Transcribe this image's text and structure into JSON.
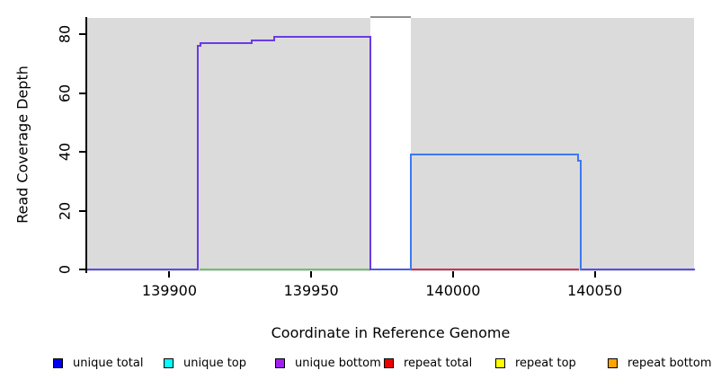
{
  "chart_data": {
    "type": "line",
    "step": true,
    "title": "",
    "xlabel": "Coordinate in Reference Genome",
    "ylabel": "Read Coverage Depth",
    "xlim": [
      139871,
      140085
    ],
    "ylim": [
      0,
      85.5
    ],
    "x_ticks": [
      139900,
      139950,
      140000,
      140050
    ],
    "y_ticks": [
      0,
      20,
      40,
      60,
      80
    ],
    "grid": false,
    "plot_background_color": "#DBDBDB",
    "background_regions": [
      {
        "name": "covered-region-left",
        "from": 139871,
        "to": 139971,
        "color": "#DBDBDB"
      },
      {
        "name": "covered-region-right",
        "from": 139985,
        "to": 140085,
        "color": "#DBDBDB"
      }
    ],
    "uncovered_gap": {
      "from": 139971,
      "to": 139985,
      "fill": "#FFFFFF",
      "clipped_top_line_value": 85,
      "clipped_top_line_color": "#8F8F8F"
    },
    "series": [
      {
        "name": "unique bottom coverage plateau",
        "color": "#6A3AE6",
        "path": [
          [
            139910,
            0
          ],
          [
            139910,
            76
          ],
          [
            139911,
            76
          ],
          [
            139911,
            77
          ],
          [
            139929,
            77
          ],
          [
            139929,
            78
          ],
          [
            139937,
            78
          ],
          [
            139937,
            79
          ],
          [
            139971,
            79
          ],
          [
            139971,
            0
          ]
        ]
      },
      {
        "name": "unique total coverage plateau",
        "color": "#3D79F0",
        "path": [
          [
            139985,
            0
          ],
          [
            139985,
            39
          ],
          [
            140044,
            39
          ],
          [
            140044,
            37
          ],
          [
            140045,
            37
          ],
          [
            140045,
            0
          ]
        ]
      }
    ],
    "baseline_segments": [
      {
        "from": 139871,
        "to": 139910,
        "value": 0,
        "color": "#584FE6"
      },
      {
        "from": 139911,
        "to": 139971,
        "value": 0,
        "color": "#6FC26F"
      },
      {
        "from": 139971,
        "to": 139985,
        "value": 0,
        "color": "#4A5BE6"
      },
      {
        "from": 139985,
        "to": 140044,
        "value": 0,
        "color": "#CC3355"
      },
      {
        "from": 140045,
        "to": 140085,
        "value": 0,
        "color": "#584FE6"
      }
    ],
    "legend_position": "bottom",
    "legend": [
      {
        "label": "unique total",
        "color": "#0000EE"
      },
      {
        "label": "unique top",
        "color": "#00FFFF"
      },
      {
        "label": "unique bottom",
        "color": "#A020F0"
      },
      {
        "label": "repeat total",
        "color": "#EE0000"
      },
      {
        "label": "repeat top",
        "color": "#FFFF00"
      },
      {
        "label": "repeat bottom",
        "color": "#FFA500"
      }
    ]
  }
}
